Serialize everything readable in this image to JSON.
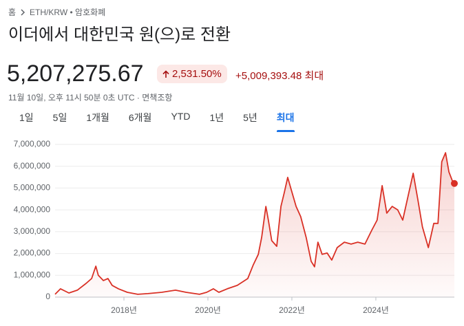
{
  "breadcrumb": {
    "home": "홈",
    "path": "ETH/KRW • 암호화폐"
  },
  "title": "이더에서 대한민국 원(으)로 전환",
  "price": "5,207,275.67",
  "change_percent": "2,531.50%",
  "change_amount": "+5,009,393.48",
  "change_period": "최대",
  "timestamp": "11월 10일, 오후 11시 50분 0초 UTC ·",
  "disclaimer": "면책조항",
  "tabs": [
    "1일",
    "5일",
    "1개월",
    "6개월",
    "YTD",
    "1년",
    "5년",
    "최대"
  ],
  "active_tab": 7,
  "chart_data": {
    "type": "line",
    "color": "#d93025",
    "x": [
      2016.36,
      2016.49,
      2016.69,
      2016.89,
      2017.1,
      2017.23,
      2017.33,
      2017.39,
      2017.51,
      2017.62,
      2017.72,
      2017.87,
      2018.08,
      2018.33,
      2018.57,
      2018.9,
      2019.23,
      2019.48,
      2019.8,
      2019.97,
      2020.13,
      2020.26,
      2020.46,
      2020.7,
      2020.95,
      2021.08,
      2021.2,
      2021.28,
      2021.38,
      2021.44,
      2021.52,
      2021.64,
      2021.74,
      2021.82,
      2021.9,
      2021.98,
      2022.1,
      2022.21,
      2022.34,
      2022.46,
      2022.54,
      2022.62,
      2022.72,
      2022.84,
      2022.95,
      2023.08,
      2023.25,
      2023.41,
      2023.57,
      2023.74,
      2023.9,
      2024.03,
      2024.15,
      2024.26,
      2024.39,
      2024.52,
      2024.64,
      2024.75,
      2024.89,
      2025.0,
      2025.11,
      2025.25,
      2025.38,
      2025.48,
      2025.57,
      2025.66,
      2025.74,
      2025.84,
      2025.87
    ],
    "values": [
      130000,
      380000,
      190000,
      320000,
      630000,
      850000,
      1420000,
      1000000,
      760000,
      850000,
      540000,
      380000,
      220000,
      130000,
      160000,
      220000,
      320000,
      220000,
      130000,
      220000,
      380000,
      220000,
      380000,
      540000,
      850000,
      1480000,
      1960000,
      2740000,
      4160000,
      3530000,
      2590000,
      2330000,
      4160000,
      4800000,
      5490000,
      4950000,
      4160000,
      3690000,
      2740000,
      1640000,
      1390000,
      2520000,
      1960000,
      2020000,
      1700000,
      2270000,
      2520000,
      2430000,
      2520000,
      2430000,
      3060000,
      3530000,
      5110000,
      3850000,
      4160000,
      4000000,
      3530000,
      4480000,
      5680000,
      4480000,
      3220000,
      2270000,
      3380000,
      3380000,
      6210000,
      6620000,
      5740000,
      5240000,
      5210000
    ],
    "xlim": [
      2016.36,
      2025.87
    ],
    "xticks": [
      {
        "value": 2018,
        "label": "2018년"
      },
      {
        "value": 2020,
        "label": "2020년"
      },
      {
        "value": 2022,
        "label": "2022년"
      },
      {
        "value": 2024,
        "label": "2024년"
      }
    ],
    "ylim": [
      0,
      7000000
    ],
    "yticks": [
      0,
      {
        "value": 1000000,
        "label": "1,000,000"
      },
      {
        "value": 2000000,
        "label": "2,000,000"
      },
      {
        "value": 3000000,
        "label": "3,000,000"
      },
      {
        "value": 4000000,
        "label": "4,000,000"
      },
      {
        "value": 5000000,
        "label": "5,000,000"
      },
      {
        "value": 6000000,
        "label": "6,000,000"
      },
      {
        "value": 7000000,
        "label": "7,000,000"
      }
    ],
    "grid": true
  }
}
